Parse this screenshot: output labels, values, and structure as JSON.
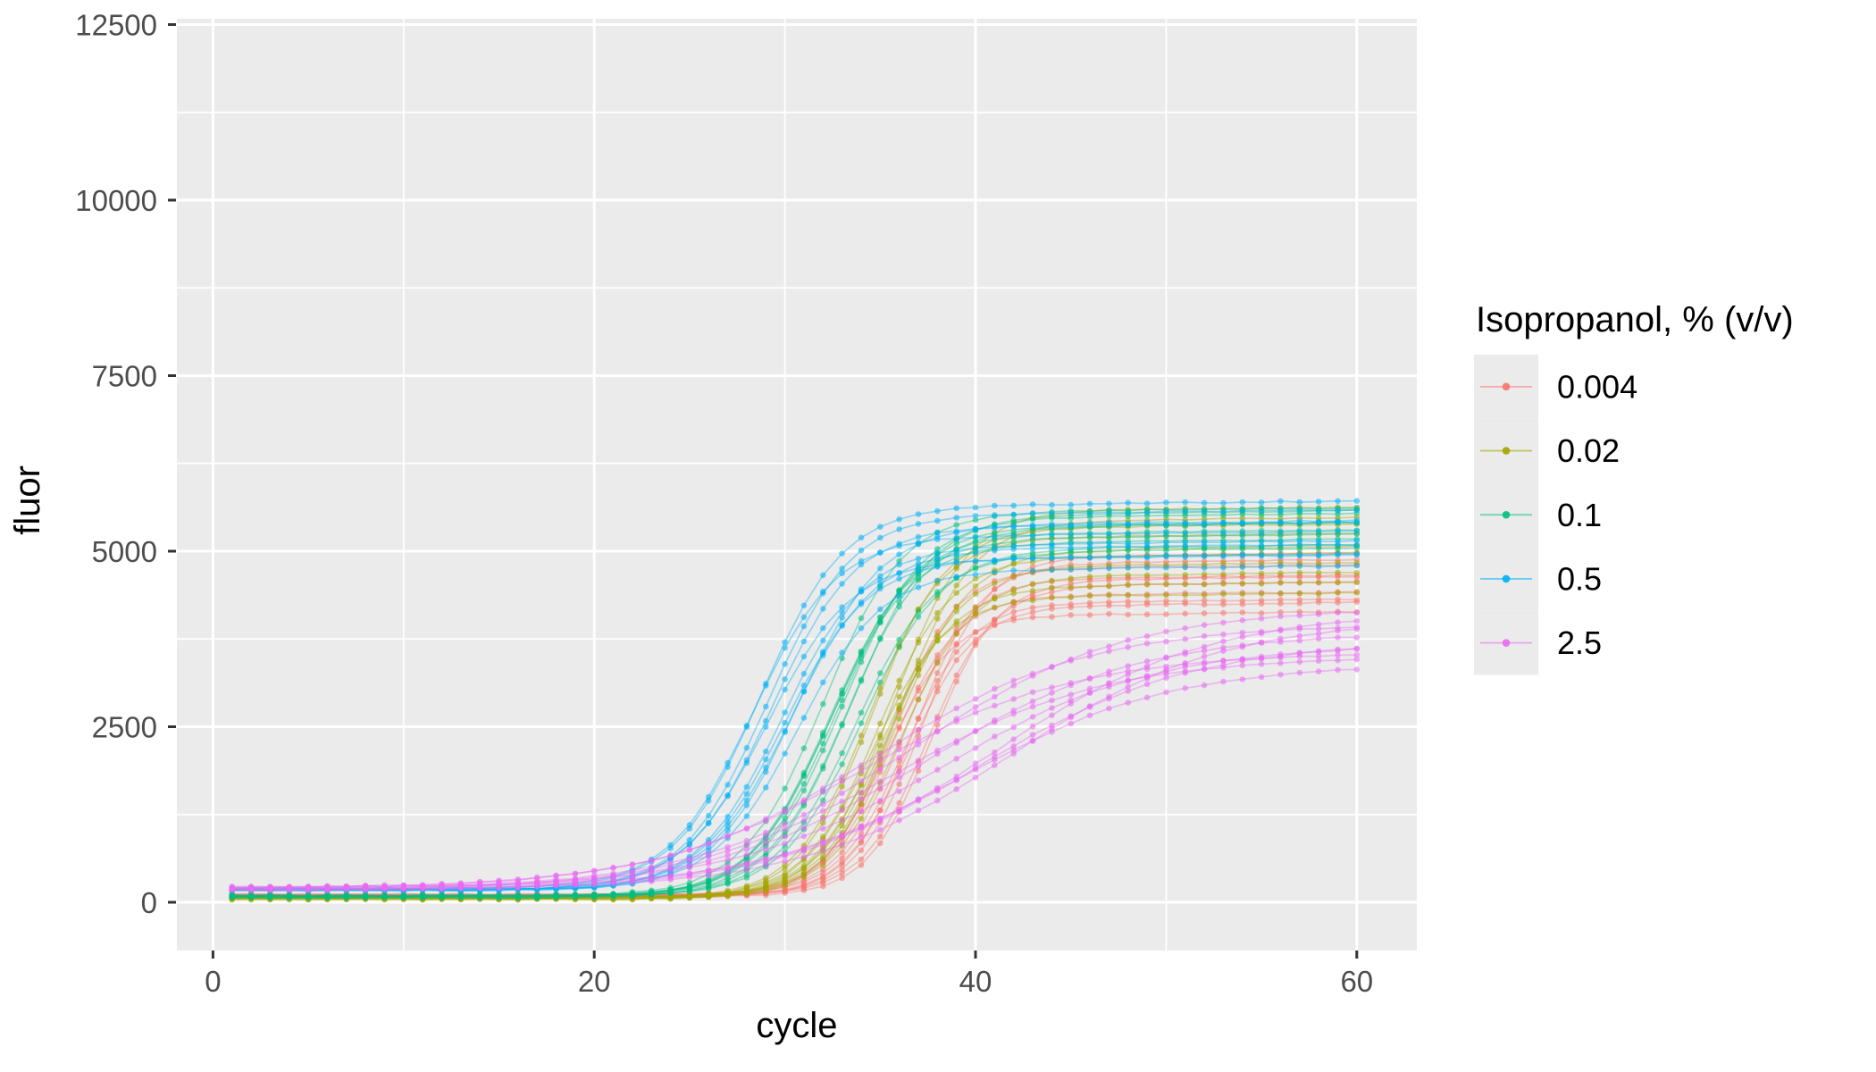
{
  "chart_data": {
    "type": "line",
    "title": "",
    "xlabel": "cycle",
    "ylabel": "fluor",
    "x_axis": {
      "ticks": [
        0,
        20,
        40,
        60
      ],
      "minor_ticks": [
        10,
        30,
        50
      ],
      "range_shown": [
        -1.95,
        62.95
      ]
    },
    "y_axis": {
      "ticks": [
        0,
        2500,
        5000,
        7500,
        10000,
        12500
      ],
      "minor_ticks": [
        1250,
        3750,
        6250,
        8750,
        11250
      ],
      "range_shown": [
        -690,
        12590
      ]
    },
    "grid": {
      "major": true,
      "minor": true
    },
    "cycle_min": 1,
    "cycle_max": 60,
    "model": "fluor(cycle) = baseline + plateau / (1 + exp(-(cycle - ct)/k)) + drift*(cycle - ct, after ct)",
    "legend": {
      "title": "Isopropanol, % (v/v)",
      "position": "right"
    },
    "series": [
      {
        "label": "0.004",
        "color": "#F8766D",
        "replicates": 10,
        "baseline": 95,
        "baseline_spread": 40,
        "ct_range": [
          35.3,
          37.6
        ],
        "k": 1.7,
        "plateau_range": [
          3980,
          4820
        ],
        "drift": 5
      },
      {
        "label": "0.02",
        "color": "#A3A500",
        "replicates": 10,
        "baseline": 60,
        "baseline_spread": 35,
        "ct_range": [
          34.2,
          36.2
        ],
        "k": 1.9,
        "plateau_range": [
          4300,
          5510
        ],
        "drift": 5
      },
      {
        "label": "0.1",
        "color": "#00BF7D",
        "replicates": 10,
        "baseline": 85,
        "baseline_spread": 40,
        "ct_range": [
          32.0,
          34.0
        ],
        "k": 2.1,
        "plateau_range": [
          4900,
          5480
        ],
        "drift": 5
      },
      {
        "label": "0.5",
        "color": "#00B0F6",
        "replicates": 10,
        "baseline": 185,
        "baseline_spread": 50,
        "ct_range": [
          28.4,
          30.7
        ],
        "k": 2.2,
        "plateau_range": [
          4550,
          5400
        ],
        "drift": 5
      },
      {
        "label": "2.5",
        "color": "#E76BF3",
        "replicates": 10,
        "baseline": 195,
        "baseline_spread": 50,
        "ct_range": [
          33.8,
          41.8
        ],
        "k": 5.5,
        "plateau_range": [
          3150,
          3950
        ],
        "drift": 4
      }
    ],
    "style": {
      "panel_bg": "#EBEBEB",
      "grid_color": "#FFFFFF",
      "tick_color": "#333333",
      "tick_label_color": "#4D4D4D",
      "title_color": "#000000",
      "line_width": 1.7,
      "line_opacity": 0.4,
      "point_radius": 3.3,
      "point_opacity": 0.55,
      "legend_key_bg": "#EBEBEB"
    }
  }
}
